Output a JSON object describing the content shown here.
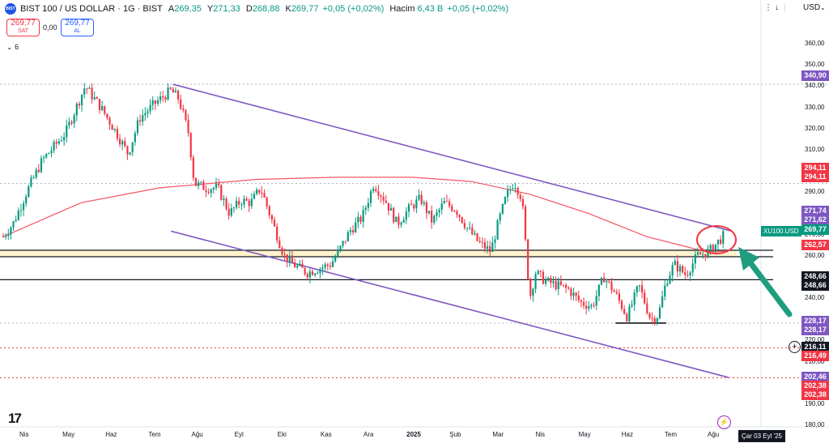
{
  "header": {
    "symbol": "BIST 100 / US DOLLAR · 1G · BIST",
    "open_label": "A",
    "open": "269,35",
    "high_label": "Y",
    "high": "271,33",
    "low_label": "D",
    "low": "268,88",
    "close_label": "K",
    "close": "269,77",
    "change": "+0,05 (+0,02%)",
    "volume_label": "Hacim",
    "volume": "6,43 B",
    "volume_change": "+0,05 (+0,02%)"
  },
  "trade": {
    "sell_price": "269,77",
    "sell_label": "SAT",
    "spread": "0,00",
    "buy_price": "269,77",
    "buy_label": "AL"
  },
  "indicators_collapse": "6",
  "top_right": {
    "currency": "USD",
    "arrow": "↓",
    "menu": "⋮"
  },
  "logo_text": "17",
  "price_tags": [
    {
      "value": "340,90",
      "color": "#7e57c2"
    },
    {
      "value": "294,11",
      "color": "#f23645"
    },
    {
      "value": "294,11",
      "color": "#f23645"
    },
    {
      "value": "271,74",
      "color": "#7e57c2"
    },
    {
      "value": "271,62",
      "color": "#7e57c2"
    },
    {
      "value": "269,77",
      "color": "#089981"
    },
    {
      "value": "262,57",
      "color": "#f23645"
    },
    {
      "value": "248,66",
      "color": "#131722"
    },
    {
      "value": "248,66",
      "color": "#131722"
    },
    {
      "value": "228,17",
      "color": "#7e57c2"
    },
    {
      "value": "228,17",
      "color": "#7e57c2"
    },
    {
      "value": "216,11",
      "color": "#131722"
    },
    {
      "value": "216,49",
      "color": "#f23645"
    },
    {
      "value": "202,46",
      "color": "#7e57c2"
    },
    {
      "value": "202,38",
      "color": "#f23645"
    },
    {
      "value": "202,38",
      "color": "#f23645"
    }
  ],
  "symbol_tag": "XU100.USD",
  "date_label": "Çar 03 Eyl '25",
  "chart_data": {
    "type": "candlestick",
    "title": "BIST 100 / US DOLLAR · 1G · BIST",
    "y_ticks": [
      180,
      190,
      200,
      210,
      220,
      230,
      240,
      250,
      260,
      270,
      280,
      290,
      300,
      310,
      320,
      330,
      340,
      350,
      360
    ],
    "y_tick_labels": [
      "180,00",
      "190,00",
      "200,00",
      "210,00",
      "220,00",
      "230,00",
      "240,00",
      "250,00",
      "260,00",
      "270,00",
      "280,00",
      "290,00",
      "300,00",
      "310,00",
      "320,00",
      "330,00",
      "340,00",
      "350,00",
      "360,00"
    ],
    "x_labels": [
      "Nis",
      "May",
      "Haz",
      "Tem",
      "Ağu",
      "Eyl",
      "Eki",
      "Kas",
      "Ara",
      "2025",
      "Şub",
      "Mar",
      "Nis",
      "May",
      "Haz",
      "Tem",
      "Ağu"
    ],
    "ylim": [
      180,
      365
    ],
    "price_path": [
      {
        "t": 0,
        "close": 269
      },
      {
        "t": 5,
        "close": 275
      },
      {
        "t": 12,
        "close": 290
      },
      {
        "t": 20,
        "close": 305
      },
      {
        "t": 32,
        "close": 318
      },
      {
        "t": 42,
        "close": 340
      },
      {
        "t": 50,
        "close": 330
      },
      {
        "t": 58,
        "close": 318
      },
      {
        "t": 64,
        "close": 308
      },
      {
        "t": 70,
        "close": 325
      },
      {
        "t": 78,
        "close": 332
      },
      {
        "t": 86,
        "close": 338
      },
      {
        "t": 90,
        "close": 334
      },
      {
        "t": 95,
        "close": 318
      },
      {
        "t": 98,
        "close": 294
      },
      {
        "t": 104,
        "close": 292
      },
      {
        "t": 110,
        "close": 292
      },
      {
        "t": 116,
        "close": 280
      },
      {
        "t": 122,
        "close": 286
      },
      {
        "t": 127,
        "close": 285
      },
      {
        "t": 132,
        "close": 292
      },
      {
        "t": 138,
        "close": 276
      },
      {
        "t": 144,
        "close": 260
      },
      {
        "t": 150,
        "close": 255
      },
      {
        "t": 156,
        "close": 252
      },
      {
        "t": 162,
        "close": 254
      },
      {
        "t": 168,
        "close": 256
      },
      {
        "t": 172,
        "close": 262
      },
      {
        "t": 178,
        "close": 272
      },
      {
        "t": 184,
        "close": 278
      },
      {
        "t": 190,
        "close": 294
      },
      {
        "t": 196,
        "close": 286
      },
      {
        "t": 202,
        "close": 275
      },
      {
        "t": 208,
        "close": 282
      },
      {
        "t": 214,
        "close": 287
      },
      {
        "t": 220,
        "close": 276
      },
      {
        "t": 226,
        "close": 285
      },
      {
        "t": 232,
        "close": 282
      },
      {
        "t": 238,
        "close": 273
      },
      {
        "t": 244,
        "close": 266
      },
      {
        "t": 250,
        "close": 262
      },
      {
        "t": 254,
        "close": 276
      },
      {
        "t": 258,
        "close": 288
      },
      {
        "t": 262,
        "close": 295
      },
      {
        "t": 266,
        "close": 287
      },
      {
        "t": 268,
        "close": 264
      },
      {
        "t": 270,
        "close": 240
      },
      {
        "t": 273,
        "close": 252
      },
      {
        "t": 278,
        "close": 248
      },
      {
        "t": 284,
        "close": 246
      },
      {
        "t": 290,
        "close": 244
      },
      {
        "t": 296,
        "close": 238
      },
      {
        "t": 302,
        "close": 236
      },
      {
        "t": 308,
        "close": 250
      },
      {
        "t": 314,
        "close": 242
      },
      {
        "t": 320,
        "close": 231
      },
      {
        "t": 326,
        "close": 246
      },
      {
        "t": 332,
        "close": 230
      },
      {
        "t": 336,
        "close": 232
      },
      {
        "t": 340,
        "close": 248
      },
      {
        "t": 344,
        "close": 256
      },
      {
        "t": 350,
        "close": 251
      },
      {
        "t": 356,
        "close": 260
      },
      {
        "t": 362,
        "close": 262
      },
      {
        "t": 366,
        "close": 266
      },
      {
        "t": 370,
        "close": 270
      }
    ],
    "series": [
      {
        "name": "",
        "type": "moving_average",
        "values": [
          {
            "t": 0,
            "v": 269
          },
          {
            "t": 40,
            "v": 285
          },
          {
            "t": 80,
            "v": 292
          },
          {
            "t": 130,
            "v": 296
          },
          {
            "t": 170,
            "v": 297
          },
          {
            "t": 210,
            "v": 297
          },
          {
            "t": 240,
            "v": 295
          },
          {
            "t": 270,
            "v": 289
          },
          {
            "t": 300,
            "v": 280
          },
          {
            "t": 330,
            "v": 269
          },
          {
            "t": 360,
            "v": 262
          },
          {
            "t": 370,
            "v": 262
          }
        ]
      }
    ],
    "trend_lines": [
      {
        "from": {
          "t": 87,
          "v": 340.9
        },
        "to": {
          "t": 373,
          "v": 271.7
        },
        "color": "#7e57c2"
      },
      {
        "from": {
          "t": 86,
          "v": 271.6
        },
        "to": {
          "t": 372,
          "v": 202.5
        },
        "color": "#7e57c2"
      },
      {
        "from": {
          "t": 314,
          "v": 228.2
        },
        "to": {
          "t": 340,
          "v": 228.2
        },
        "color": "#131722"
      }
    ],
    "horizontal_levels": [
      {
        "value": 262.57,
        "style": "solid",
        "color": "#131722"
      },
      {
        "value": 259.5,
        "style": "solid",
        "color": "#131722"
      },
      {
        "value": 248.66,
        "style": "solid",
        "color": "#131722"
      },
      {
        "value": 216.49,
        "style": "dotted",
        "color": "#f23645"
      },
      {
        "value": 202.38,
        "style": "dotted",
        "color": "#f23645"
      },
      {
        "value": 340.9,
        "style": "dotted",
        "color": "#b2b5be"
      },
      {
        "value": 294.11,
        "style": "dotted",
        "color": "#b2b5be"
      },
      {
        "value": 228.17,
        "style": "dotted",
        "color": "#b2b5be"
      }
    ],
    "zone": {
      "from": 259.5,
      "to": 262.57,
      "color": "#fff3cc"
    },
    "annotations": [
      {
        "type": "circle",
        "around_t": 366,
        "around_v": 266,
        "color": "#f23645"
      },
      {
        "type": "arrow",
        "color": "#089981"
      }
    ]
  }
}
